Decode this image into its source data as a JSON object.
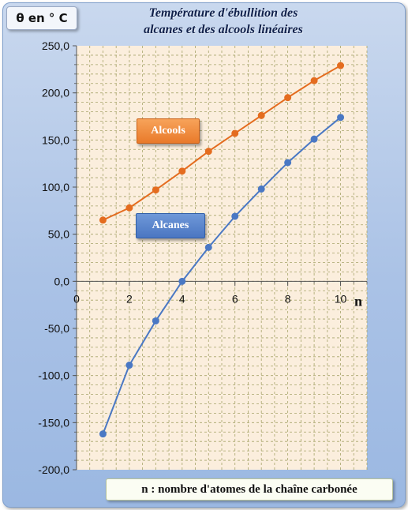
{
  "chart_data": {
    "type": "line",
    "title_lines": [
      "Température d'ébullition des",
      "alcanes et des alcools  linéaires"
    ],
    "ylabel": "θ en ° C",
    "xlabel": "n",
    "x_axis_description": "n : nombre d'atomes de la chaîne carbonée",
    "xlim": [
      0,
      11
    ],
    "ylim": [
      -200,
      250
    ],
    "x_ticks": [
      0,
      2,
      4,
      6,
      8,
      10
    ],
    "y_ticks": [
      250,
      200,
      150,
      100,
      50,
      0,
      -50,
      -100,
      -150,
      -200
    ],
    "y_tick_labels": [
      "250,0",
      "200,0",
      "150,0",
      "100,0",
      "50,0",
      "0,0",
      "-50,0",
      "-100,0",
      "-150,0",
      "-200,0"
    ],
    "grid": true,
    "series": [
      {
        "name": "Alcools",
        "color": "#e46c1f",
        "x": [
          1,
          2,
          3,
          4,
          5,
          6,
          7,
          8,
          9,
          10
        ],
        "y": [
          65,
          78,
          97,
          117,
          138,
          157,
          176,
          195,
          213,
          229
        ]
      },
      {
        "name": "Alcanes",
        "color": "#4a78c4",
        "x": [
          1,
          2,
          3,
          4,
          5,
          6,
          7,
          8,
          9,
          10
        ],
        "y": [
          -162,
          -89,
          -42,
          0,
          36,
          69,
          98,
          126,
          151,
          174
        ]
      }
    ],
    "colors": {
      "plot_background": "#fbeedd",
      "grid": "#a6a46a",
      "axis": "#555555"
    }
  }
}
